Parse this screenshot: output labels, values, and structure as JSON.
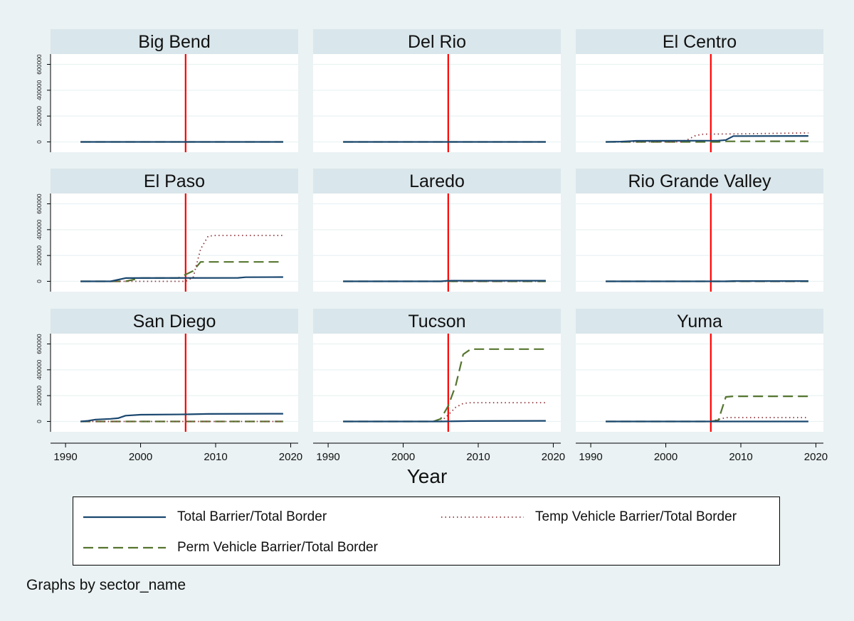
{
  "chart_data": {
    "type": "line",
    "xlabel": "Year",
    "xticks": [
      1990,
      2000,
      2010,
      2020
    ],
    "xlim": [
      1988,
      2021
    ],
    "ylim": [
      -80000,
      680000
    ],
    "yticks": [
      0,
      200000,
      400000,
      600000
    ],
    "yticklabels": [
      "0",
      "200000",
      "400000",
      "600000"
    ],
    "reference_line": {
      "x": 2006,
      "color": "#ff0000"
    },
    "grid": true,
    "series_styles": {
      "total": {
        "name": "Total Barrier/Total Border",
        "color": "#1a476f",
        "dash": ""
      },
      "temp": {
        "name": "Temp Vehicle Barrier/Total Border",
        "color": "#90353b",
        "dash": "1.5,4"
      },
      "perm": {
        "name": "Perm Vehicle Barrier/Total Border",
        "color": "#55752f",
        "dash": "14,7"
      }
    },
    "panels": [
      {
        "title": "Big Bend",
        "total": [
          [
            1992,
            0
          ],
          [
            2019,
            0
          ]
        ],
        "temp": [
          [
            1992,
            0
          ],
          [
            2019,
            0
          ]
        ],
        "perm": [
          [
            1992,
            0
          ],
          [
            2019,
            0
          ]
        ]
      },
      {
        "title": "Del Rio",
        "total": [
          [
            1992,
            0
          ],
          [
            2019,
            0
          ]
        ],
        "temp": [
          [
            1992,
            0
          ],
          [
            2019,
            0
          ]
        ],
        "perm": [
          [
            1992,
            0
          ],
          [
            2019,
            0
          ]
        ]
      },
      {
        "title": "El Centro",
        "total": [
          [
            1992,
            0
          ],
          [
            1994,
            2000
          ],
          [
            1996,
            8000
          ],
          [
            2007,
            10000
          ],
          [
            2008,
            15000
          ],
          [
            2009,
            45000
          ],
          [
            2019,
            46000
          ]
        ],
        "temp": [
          [
            1992,
            0
          ],
          [
            2002,
            0
          ],
          [
            2003,
            20000
          ],
          [
            2004,
            50000
          ],
          [
            2005,
            60000
          ],
          [
            2010,
            62000
          ],
          [
            2019,
            70000
          ]
        ],
        "perm": [
          [
            1992,
            0
          ],
          [
            2007,
            0
          ],
          [
            2008,
            4000
          ],
          [
            2019,
            5000
          ]
        ]
      },
      {
        "title": "El Paso",
        "total": [
          [
            1992,
            0
          ],
          [
            1996,
            0
          ],
          [
            1998,
            25000
          ],
          [
            2013,
            27000
          ],
          [
            2014,
            32000
          ],
          [
            2019,
            33000
          ]
        ],
        "temp": [
          [
            1992,
            0
          ],
          [
            2006,
            0
          ],
          [
            2007,
            30000
          ],
          [
            2008,
            250000
          ],
          [
            2009,
            350000
          ],
          [
            2010,
            355000
          ],
          [
            2019,
            355000
          ]
        ],
        "perm": [
          [
            1992,
            0
          ],
          [
            1998,
            0
          ],
          [
            2000,
            25000
          ],
          [
            2005,
            25000
          ],
          [
            2007,
            80000
          ],
          [
            2008,
            150000
          ],
          [
            2019,
            150000
          ]
        ]
      },
      {
        "title": "Laredo",
        "total": [
          [
            1992,
            0
          ],
          [
            2005,
            0
          ],
          [
            2006,
            5000
          ],
          [
            2019,
            5000
          ]
        ],
        "temp": [
          [
            1992,
            0
          ],
          [
            2019,
            0
          ]
        ],
        "perm": [
          [
            1992,
            0
          ],
          [
            2019,
            0
          ]
        ]
      },
      {
        "title": "Rio Grande Valley",
        "total": [
          [
            1992,
            0
          ],
          [
            2008,
            0
          ],
          [
            2009,
            2000
          ],
          [
            2019,
            2000
          ]
        ],
        "temp": [
          [
            1992,
            0
          ],
          [
            2019,
            0
          ]
        ],
        "perm": [
          [
            1992,
            0
          ],
          [
            2019,
            0
          ]
        ]
      },
      {
        "title": "San Diego",
        "total": [
          [
            1992,
            0
          ],
          [
            1993,
            5000
          ],
          [
            1994,
            15000
          ],
          [
            1996,
            20000
          ],
          [
            1997,
            25000
          ],
          [
            1998,
            45000
          ],
          [
            2000,
            52000
          ],
          [
            2006,
            55000
          ],
          [
            2009,
            58000
          ],
          [
            2019,
            60000
          ]
        ],
        "temp": [
          [
            1992,
            0
          ],
          [
            2019,
            0
          ]
        ],
        "perm": [
          [
            1992,
            0
          ],
          [
            2019,
            0
          ]
        ]
      },
      {
        "title": "Tucson",
        "total": [
          [
            1992,
            0
          ],
          [
            2005,
            0
          ],
          [
            2009,
            3000
          ],
          [
            2019,
            5000
          ]
        ],
        "temp": [
          [
            1992,
            0
          ],
          [
            2005,
            0
          ],
          [
            2006,
            50000
          ],
          [
            2007,
            110000
          ],
          [
            2008,
            140000
          ],
          [
            2009,
            145000
          ],
          [
            2019,
            145000
          ]
        ],
        "perm": [
          [
            1992,
            0
          ],
          [
            2004,
            0
          ],
          [
            2005,
            20000
          ],
          [
            2006,
            120000
          ],
          [
            2007,
            280000
          ],
          [
            2008,
            520000
          ],
          [
            2009,
            560000
          ],
          [
            2019,
            560000
          ]
        ]
      },
      {
        "title": "Yuma",
        "total": [
          [
            1992,
            0
          ],
          [
            2019,
            0
          ]
        ],
        "temp": [
          [
            1992,
            0
          ],
          [
            2006,
            0
          ],
          [
            2007,
            15000
          ],
          [
            2008,
            30000
          ],
          [
            2019,
            30000
          ]
        ],
        "perm": [
          [
            1992,
            0
          ],
          [
            2006,
            0
          ],
          [
            2007,
            10000
          ],
          [
            2008,
            190000
          ],
          [
            2009,
            195000
          ],
          [
            2019,
            195000
          ]
        ]
      }
    ]
  },
  "legend": {
    "total_label": "Total Barrier/Total Border",
    "temp_label": "Temp Vehicle Barrier/Total Border",
    "perm_label": "Perm Vehicle Barrier/Total Border"
  },
  "note": "Graphs by sector_name",
  "colors": {
    "background": "#eaf2f3",
    "plot_region": "#ffffff",
    "panel_header": "#d9e6eb",
    "gridline": "#eaf2f3",
    "reference_line": "#ff0000"
  }
}
